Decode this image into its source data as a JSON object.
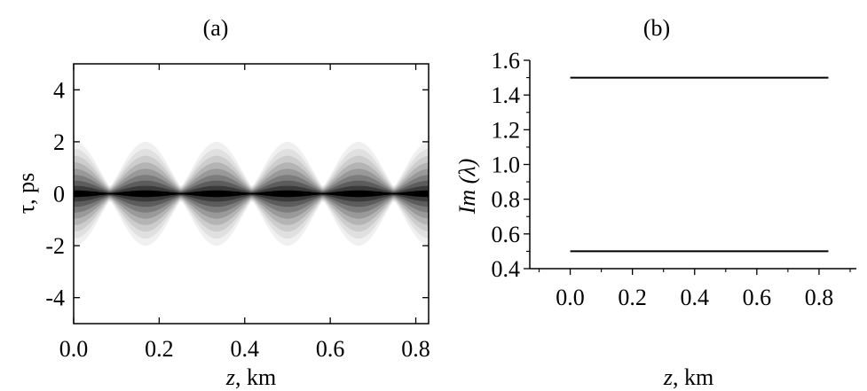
{
  "chart_data": [
    {
      "type": "heatmap",
      "panel_label": "(a)",
      "xlabel_var": "z",
      "xlabel_unit": ", km",
      "ylabel": "τ, ps",
      "xlim": [
        0.0,
        0.83
      ],
      "ylim": [
        -5,
        5
      ],
      "xticks": [
        "0.0",
        "0.2",
        "0.4",
        "0.6",
        "0.8"
      ],
      "xtick_values": [
        0.0,
        0.2,
        0.4,
        0.6,
        0.8
      ],
      "yticks": [
        "4",
        "2",
        "0",
        "-2",
        "-4"
      ],
      "ytick_values": [
        4,
        2,
        0,
        -2,
        -4
      ],
      "grid": false,
      "pulse_period_km": 0.166,
      "pulse_peak_z_km": [
        0.085,
        0.251,
        0.417,
        0.583,
        0.749
      ],
      "pulse_min_halfwidth_ps": 0.28,
      "pulse_max_halfwidth_ps": 2.0,
      "colormap": [
        "#f0f0f0",
        "#e0e0e0",
        "#cccccc",
        "#b4b4b4",
        "#999999",
        "#7c7c7c",
        "#5c5c5c",
        "#3a3a3a",
        "#000000"
      ]
    },
    {
      "type": "line",
      "panel_label": "(b)",
      "xlabel_var": "z",
      "xlabel_unit": ", km",
      "ylabel_prefix": "Im",
      "ylabel_arg": "(λ)",
      "xlim": [
        -0.13,
        0.92
      ],
      "ylim": [
        0.4,
        1.6
      ],
      "xticks": [
        "0.0",
        "0.2",
        "0.4",
        "0.6",
        "0.8"
      ],
      "xtick_values": [
        0.0,
        0.2,
        0.4,
        0.6,
        0.8
      ],
      "yticks": [
        "1.6",
        "1.4",
        "1.2",
        "1.0",
        "0.8",
        "0.6",
        "0.4"
      ],
      "ytick_values": [
        1.6,
        1.4,
        1.2,
        1.0,
        0.8,
        0.6,
        0.4
      ],
      "grid": false,
      "series": [
        {
          "x": [
            0.0,
            0.83
          ],
          "values": [
            1.5,
            1.5
          ]
        },
        {
          "x": [
            0.0,
            0.83
          ],
          "values": [
            0.5,
            0.5
          ]
        }
      ],
      "line_color": "#000000"
    }
  ]
}
